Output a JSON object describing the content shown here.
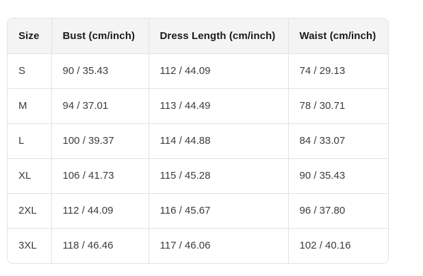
{
  "colors": {
    "page_bg": "#ffffff",
    "header_bg": "#f4f4f5",
    "border": "#e2e2e4",
    "header_text": "#1b1b1f",
    "body_text": "#3c3c41"
  },
  "size_chart": {
    "columns": [
      "Size",
      "Bust (cm/inch)",
      "Dress Length (cm/inch)",
      "Waist (cm/inch)"
    ],
    "row_keys": [
      "size",
      "bust",
      "dress_length",
      "waist"
    ],
    "rows": [
      {
        "size": "S",
        "bust": "90 / 35.43",
        "dress_length": "112 / 44.09",
        "waist": "74 / 29.13"
      },
      {
        "size": "M",
        "bust": "94 / 37.01",
        "dress_length": "113 / 44.49",
        "waist": "78 / 30.71"
      },
      {
        "size": "L",
        "bust": "100 / 39.37",
        "dress_length": "114 / 44.88",
        "waist": "84 / 33.07"
      },
      {
        "size": "XL",
        "bust": "106 / 41.73",
        "dress_length": "115 / 45.28",
        "waist": "90 / 35.43"
      },
      {
        "size": "2XL",
        "bust": "112 / 44.09",
        "dress_length": "116 / 45.67",
        "waist": "96 / 37.80"
      },
      {
        "size": "3XL",
        "bust": "118 / 46.46",
        "dress_length": "117 / 46.06",
        "waist": "102 / 40.16"
      }
    ]
  }
}
